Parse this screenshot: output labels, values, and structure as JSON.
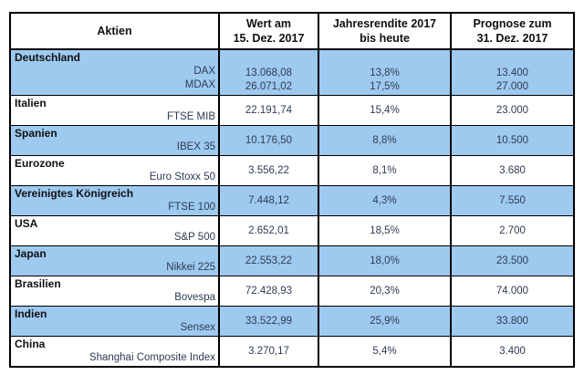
{
  "header": {
    "col1": "Aktien",
    "col2_line1": "Wert am",
    "col2_line2": "15. Dez. 2017",
    "col3_line1": "Jahresrendite 2017",
    "col3_line2": "bis heute",
    "col4_line1": "Prognose zum",
    "col4_line2": "31. Dez. 2017"
  },
  "colors": {
    "row_highlight": "#9ECAF0",
    "border": "#000000",
    "text": "#2e3b52"
  },
  "sections": [
    {
      "country": "Deutschland",
      "indices": [
        {
          "name": "DAX",
          "wert": "13.068,08",
          "rendite": "13,8%",
          "prognose": "13.400"
        },
        {
          "name": "MDAX",
          "wert": "26.071,02",
          "rendite": "17,5%",
          "prognose": "27.000"
        }
      ]
    },
    {
      "country": "Italien",
      "indices": [
        {
          "name": "FTSE MIB",
          "wert": "22.191,74",
          "rendite": "15,4%",
          "prognose": "23.000"
        }
      ]
    },
    {
      "country": "Spanien",
      "indices": [
        {
          "name": "IBEX 35",
          "wert": "10.176,50",
          "rendite": "8,8%",
          "prognose": "10.500"
        }
      ]
    },
    {
      "country": "Eurozone",
      "indices": [
        {
          "name": "Euro Stoxx 50",
          "wert": "3.556,22",
          "rendite": "8,1%",
          "prognose": "3.680"
        }
      ]
    },
    {
      "country": "Vereinigtes Königreich",
      "indices": [
        {
          "name": "FTSE 100",
          "wert": "7.448,12",
          "rendite": "4,3%",
          "prognose": "7.550"
        }
      ]
    },
    {
      "country": "USA",
      "indices": [
        {
          "name": "S&P 500",
          "wert": "2.652,01",
          "rendite": "18,5%",
          "prognose": "2.700"
        }
      ]
    },
    {
      "country": "Japan",
      "indices": [
        {
          "name": "Nikkei 225",
          "wert": "22.553,22",
          "rendite": "18,0%",
          "prognose": "23.500"
        }
      ]
    },
    {
      "country": "Brasilien",
      "indices": [
        {
          "name": "Bovespa",
          "wert": "72.428,93",
          "rendite": "20,3%",
          "prognose": "74.000"
        }
      ]
    },
    {
      "country": "Indien",
      "indices": [
        {
          "name": "Sensex",
          "wert": "33.522,99",
          "rendite": "25,9%",
          "prognose": "33.800"
        }
      ]
    },
    {
      "country": "China",
      "indices": [
        {
          "name": "Shanghai Composite Index",
          "wert": "3.270,17",
          "rendite": "5,4%",
          "prognose": "3.400"
        }
      ]
    }
  ],
  "chart_data": {
    "type": "table",
    "title": "",
    "columns": [
      "Aktien",
      "Wert am 15. Dez. 2017",
      "Jahresrendite 2017 bis heute",
      "Prognose zum 31. Dez. 2017"
    ],
    "rows": [
      [
        "Deutschland / DAX",
        "13.068,08",
        "13,8%",
        "13.400"
      ],
      [
        "Deutschland / MDAX",
        "26.071,02",
        "17,5%",
        "27.000"
      ],
      [
        "Italien / FTSE MIB",
        "22.191,74",
        "15,4%",
        "23.000"
      ],
      [
        "Spanien / IBEX 35",
        "10.176,50",
        "8,8%",
        "10.500"
      ],
      [
        "Eurozone / Euro Stoxx 50",
        "3.556,22",
        "8,1%",
        "3.680"
      ],
      [
        "Vereinigtes Königreich / FTSE 100",
        "7.448,12",
        "4,3%",
        "7.550"
      ],
      [
        "USA / S&P 500",
        "2.652,01",
        "18,5%",
        "2.700"
      ],
      [
        "Japan / Nikkei 225",
        "22.553,22",
        "18,0%",
        "23.500"
      ],
      [
        "Brasilien / Bovespa",
        "72.428,93",
        "20,3%",
        "74.000"
      ],
      [
        "Indien / Sensex",
        "33.522,99",
        "25,9%",
        "33.800"
      ],
      [
        "China / Shanghai Composite Index",
        "3.270,17",
        "5,4%",
        "3.400"
      ]
    ]
  }
}
